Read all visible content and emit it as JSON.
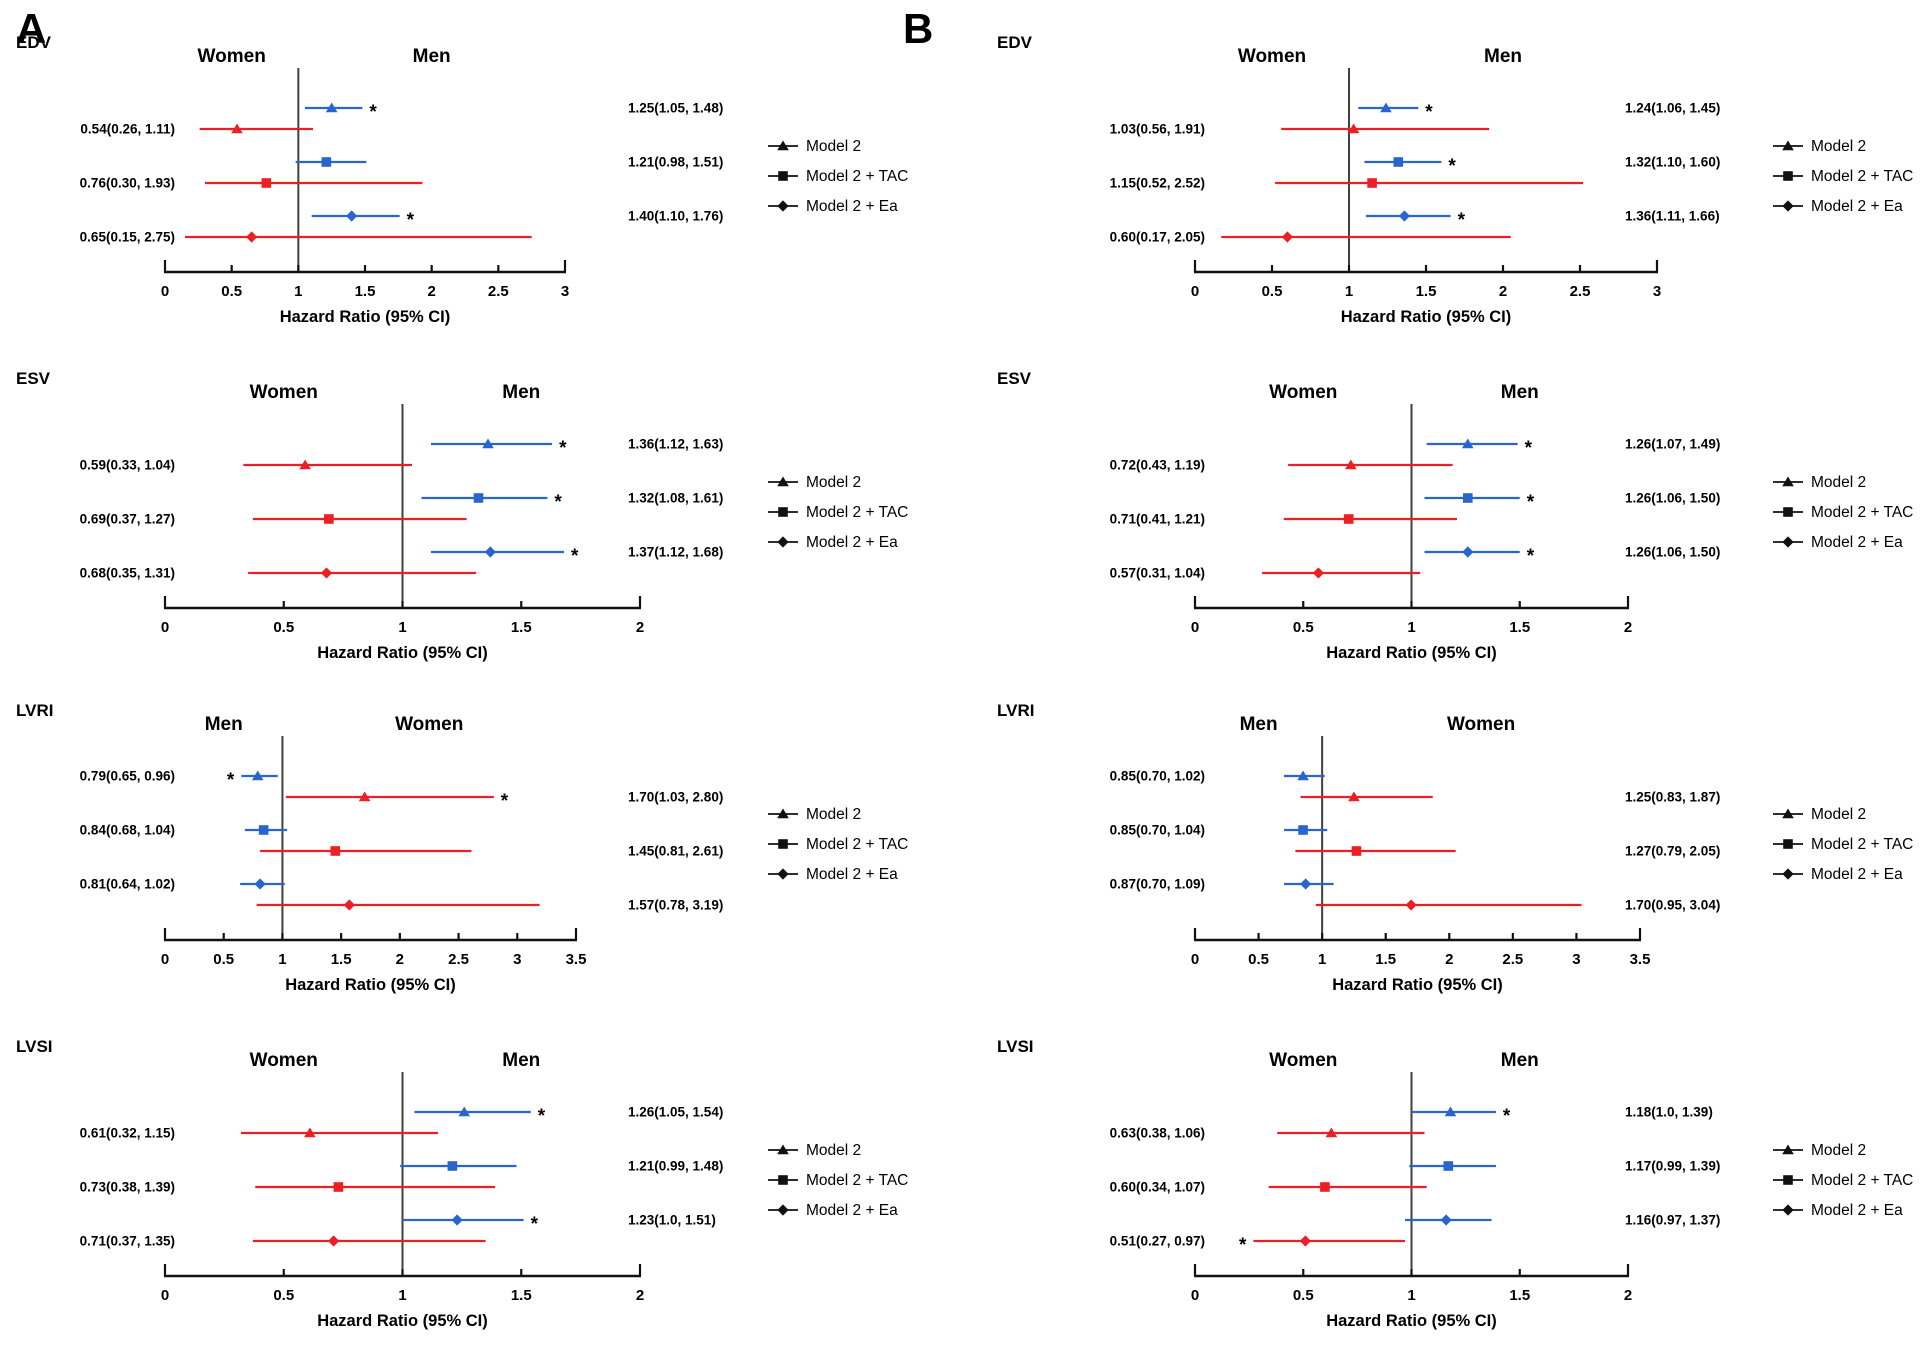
{
  "figure": {
    "panel_labels": [
      "A",
      "B"
    ],
    "axis_label": "Hazard Ratio (95% CI)",
    "legend": [
      {
        "label": "Model 2",
        "marker": "triangle"
      },
      {
        "label": "Model 2 + TAC",
        "marker": "square"
      },
      {
        "label": "Model 2 + Ea",
        "marker": "diamond"
      }
    ],
    "colors": {
      "men_series": "#2a65cc",
      "women_series": "#ec2024",
      "reference_line": "#404040",
      "axis": "#111111",
      "text": "#000000"
    }
  },
  "chart_data": [
    {
      "type": "forest",
      "panel": "A",
      "row_label": "EDV",
      "left_header": "Women",
      "right_header": "Men",
      "left_group": "women",
      "right_group": "men",
      "xlabel": "Hazard Ratio (95% CI)",
      "xlim": [
        0,
        3
      ],
      "ticks": [
        0,
        0.5,
        1,
        1.5,
        2,
        2.5,
        3
      ],
      "refline": 1,
      "models": [
        {
          "name": "Model 2",
          "marker": "triangle",
          "men": {
            "label": "1.25(1.05, 1.48)",
            "est": 1.25,
            "lo": 1.05,
            "hi": 1.48,
            "sig": true
          },
          "women": {
            "label": "0.54(0.26, 1.11)",
            "est": 0.54,
            "lo": 0.26,
            "hi": 1.11,
            "sig": false
          }
        },
        {
          "name": "Model 2 + TAC",
          "marker": "square",
          "men": {
            "label": "1.21(0.98, 1.51)",
            "est": 1.21,
            "lo": 0.98,
            "hi": 1.51,
            "sig": false
          },
          "women": {
            "label": "0.76(0.30, 1.93)",
            "est": 0.76,
            "lo": 0.3,
            "hi": 1.93,
            "sig": false
          }
        },
        {
          "name": "Model 2 + Ea",
          "marker": "diamond",
          "men": {
            "label": "1.40(1.10, 1.76)",
            "est": 1.4,
            "lo": 1.1,
            "hi": 1.76,
            "sig": true
          },
          "women": {
            "label": "0.65(0.15, 2.75)",
            "est": 0.65,
            "lo": 0.15,
            "hi": 2.75,
            "sig": false
          }
        }
      ]
    },
    {
      "type": "forest",
      "panel": "A",
      "row_label": "ESV",
      "left_header": "Women",
      "right_header": "Men",
      "left_group": "women",
      "right_group": "men",
      "xlabel": "Hazard Ratio (95% CI)",
      "xlim": [
        0,
        2
      ],
      "ticks": [
        0,
        0.5,
        1,
        1.5,
        2
      ],
      "refline": 1,
      "models": [
        {
          "name": "Model 2",
          "marker": "triangle",
          "men": {
            "label": "1.36(1.12, 1.63)",
            "est": 1.36,
            "lo": 1.12,
            "hi": 1.63,
            "sig": true
          },
          "women": {
            "label": "0.59(0.33, 1.04)",
            "est": 0.59,
            "lo": 0.33,
            "hi": 1.04,
            "sig": false
          }
        },
        {
          "name": "Model 2 + TAC",
          "marker": "square",
          "men": {
            "label": "1.32(1.08, 1.61)",
            "est": 1.32,
            "lo": 1.08,
            "hi": 1.61,
            "sig": true
          },
          "women": {
            "label": "0.69(0.37, 1.27)",
            "est": 0.69,
            "lo": 0.37,
            "hi": 1.27,
            "sig": false
          }
        },
        {
          "name": "Model 2 + Ea",
          "marker": "diamond",
          "men": {
            "label": "1.37(1.12, 1.68)",
            "est": 1.37,
            "lo": 1.12,
            "hi": 1.68,
            "sig": true
          },
          "women": {
            "label": "0.68(0.35, 1.31)",
            "est": 0.68,
            "lo": 0.35,
            "hi": 1.31,
            "sig": false
          }
        }
      ]
    },
    {
      "type": "forest",
      "panel": "A",
      "row_label": "LVRI",
      "left_header": "Men",
      "right_header": "Women",
      "left_group": "men",
      "right_group": "women",
      "xlabel": "Hazard Ratio (95% CI)",
      "xlim": [
        0,
        3.5
      ],
      "ticks": [
        0,
        0.5,
        1,
        1.5,
        2,
        2.5,
        3,
        3.5
      ],
      "refline": 1,
      "models": [
        {
          "name": "Model 2",
          "marker": "triangle",
          "men": {
            "label": "0.79(0.65, 0.96)",
            "est": 0.79,
            "lo": 0.65,
            "hi": 0.96,
            "sig": true
          },
          "women": {
            "label": "1.70(1.03, 2.80)",
            "est": 1.7,
            "lo": 1.03,
            "hi": 2.8,
            "sig": true
          }
        },
        {
          "name": "Model 2 + TAC",
          "marker": "square",
          "men": {
            "label": "0.84(0.68, 1.04)",
            "est": 0.84,
            "lo": 0.68,
            "hi": 1.04,
            "sig": false
          },
          "women": {
            "label": "1.45(0.81, 2.61)",
            "est": 1.45,
            "lo": 0.81,
            "hi": 2.61,
            "sig": false
          }
        },
        {
          "name": "Model 2 + Ea",
          "marker": "diamond",
          "men": {
            "label": "0.81(0.64, 1.02)",
            "est": 0.81,
            "lo": 0.64,
            "hi": 1.02,
            "sig": false
          },
          "women": {
            "label": "1.57(0.78, 3.19)",
            "est": 1.57,
            "lo": 0.78,
            "hi": 3.19,
            "sig": false
          }
        }
      ]
    },
    {
      "type": "forest",
      "panel": "A",
      "row_label": "LVSI",
      "left_header": "Women",
      "right_header": "Men",
      "left_group": "women",
      "right_group": "men",
      "xlabel": "Hazard Ratio (95% CI)",
      "xlim": [
        0,
        2
      ],
      "ticks": [
        0,
        0.5,
        1,
        1.5,
        2
      ],
      "refline": 1,
      "models": [
        {
          "name": "Model 2",
          "marker": "triangle",
          "men": {
            "label": "1.26(1.05, 1.54)",
            "est": 1.26,
            "lo": 1.05,
            "hi": 1.54,
            "sig": true
          },
          "women": {
            "label": "0.61(0.32, 1.15)",
            "est": 0.61,
            "lo": 0.32,
            "hi": 1.15,
            "sig": false
          }
        },
        {
          "name": "Model 2 + TAC",
          "marker": "square",
          "men": {
            "label": "1.21(0.99, 1.48)",
            "est": 1.21,
            "lo": 0.99,
            "hi": 1.48,
            "sig": false
          },
          "women": {
            "label": "0.73(0.38, 1.39)",
            "est": 0.73,
            "lo": 0.38,
            "hi": 1.39,
            "sig": false
          }
        },
        {
          "name": "Model 2 + Ea",
          "marker": "diamond",
          "men": {
            "label": "1.23(1.0, 1.51)",
            "est": 1.23,
            "lo": 1.0,
            "hi": 1.51,
            "sig": true
          },
          "women": {
            "label": "0.71(0.37, 1.35)",
            "est": 0.71,
            "lo": 0.37,
            "hi": 1.35,
            "sig": false
          }
        }
      ]
    },
    {
      "type": "forest",
      "panel": "B",
      "row_label": "EDV",
      "left_header": "Women",
      "right_header": "Men",
      "left_group": "women",
      "right_group": "men",
      "xlabel": "Hazard Ratio (95% CI)",
      "xlim": [
        0,
        3
      ],
      "ticks": [
        0,
        0.5,
        1,
        1.5,
        2,
        2.5,
        3
      ],
      "refline": 1,
      "models": [
        {
          "name": "Model 2",
          "marker": "triangle",
          "men": {
            "label": "1.24(1.06, 1.45)",
            "est": 1.24,
            "lo": 1.06,
            "hi": 1.45,
            "sig": true
          },
          "women": {
            "label": "1.03(0.56, 1.91)",
            "est": 1.03,
            "lo": 0.56,
            "hi": 1.91,
            "sig": false
          }
        },
        {
          "name": "Model 2 + TAC",
          "marker": "square",
          "men": {
            "label": "1.32(1.10, 1.60)",
            "est": 1.32,
            "lo": 1.1,
            "hi": 1.6,
            "sig": true
          },
          "women": {
            "label": "1.15(0.52, 2.52)",
            "est": 1.15,
            "lo": 0.52,
            "hi": 2.52,
            "sig": false
          }
        },
        {
          "name": "Model 2 + Ea",
          "marker": "diamond",
          "men": {
            "label": "1.36(1.11, 1.66)",
            "est": 1.36,
            "lo": 1.11,
            "hi": 1.66,
            "sig": true
          },
          "women": {
            "label": "0.60(0.17, 2.05)",
            "est": 0.6,
            "lo": 0.17,
            "hi": 2.05,
            "sig": false
          }
        }
      ]
    },
    {
      "type": "forest",
      "panel": "B",
      "row_label": "ESV",
      "left_header": "Women",
      "right_header": "Men",
      "left_group": "women",
      "right_group": "men",
      "xlabel": "Hazard Ratio (95% CI)",
      "xlim": [
        0,
        2
      ],
      "ticks": [
        0,
        0.5,
        1,
        1.5,
        2
      ],
      "refline": 1,
      "models": [
        {
          "name": "Model 2",
          "marker": "triangle",
          "men": {
            "label": "1.26(1.07, 1.49)",
            "est": 1.26,
            "lo": 1.07,
            "hi": 1.49,
            "sig": true
          },
          "women": {
            "label": "0.72(0.43, 1.19)",
            "est": 0.72,
            "lo": 0.43,
            "hi": 1.19,
            "sig": false
          }
        },
        {
          "name": "Model 2 + TAC",
          "marker": "square",
          "men": {
            "label": "1.26(1.06, 1.50)",
            "est": 1.26,
            "lo": 1.06,
            "hi": 1.5,
            "sig": true
          },
          "women": {
            "label": "0.71(0.41, 1.21)",
            "est": 0.71,
            "lo": 0.41,
            "hi": 1.21,
            "sig": false
          }
        },
        {
          "name": "Model 2 + Ea",
          "marker": "diamond",
          "men": {
            "label": "1.26(1.06, 1.50)",
            "est": 1.26,
            "lo": 1.06,
            "hi": 1.5,
            "sig": true
          },
          "women": {
            "label": "0.57(0.31, 1.04)",
            "est": 0.57,
            "lo": 0.31,
            "hi": 1.04,
            "sig": false
          }
        }
      ]
    },
    {
      "type": "forest",
      "panel": "B",
      "row_label": "LVRI",
      "left_header": "Men",
      "right_header": "Women",
      "left_group": "men",
      "right_group": "women",
      "xlabel": "Hazard Ratio (95% CI)",
      "xlim": [
        0,
        3.5
      ],
      "ticks": [
        0,
        0.5,
        1,
        1.5,
        2,
        2.5,
        3,
        3.5
      ],
      "refline": 1,
      "models": [
        {
          "name": "Model 2",
          "marker": "triangle",
          "men": {
            "label": "0.85(0.70, 1.02)",
            "est": 0.85,
            "lo": 0.7,
            "hi": 1.02,
            "sig": false
          },
          "women": {
            "label": "1.25(0.83, 1.87)",
            "est": 1.25,
            "lo": 0.83,
            "hi": 1.87,
            "sig": false
          }
        },
        {
          "name": "Model 2 + TAC",
          "marker": "square",
          "men": {
            "label": "0.85(0.70, 1.04)",
            "est": 0.85,
            "lo": 0.7,
            "hi": 1.04,
            "sig": false
          },
          "women": {
            "label": "1.27(0.79, 2.05)",
            "est": 1.27,
            "lo": 0.79,
            "hi": 2.05,
            "sig": false
          }
        },
        {
          "name": "Model 2 + Ea",
          "marker": "diamond",
          "men": {
            "label": "0.87(0.70, 1.09)",
            "est": 0.87,
            "lo": 0.7,
            "hi": 1.09,
            "sig": false
          },
          "women": {
            "label": "1.70(0.95, 3.04)",
            "est": 1.7,
            "lo": 0.95,
            "hi": 3.04,
            "sig": false
          }
        }
      ]
    },
    {
      "type": "forest",
      "panel": "B",
      "row_label": "LVSI",
      "left_header": "Women",
      "right_header": "Men",
      "left_group": "women",
      "right_group": "men",
      "xlabel": "Hazard Ratio (95% CI)",
      "xlim": [
        0,
        2
      ],
      "ticks": [
        0,
        0.5,
        1,
        1.5,
        2
      ],
      "refline": 1,
      "models": [
        {
          "name": "Model 2",
          "marker": "triangle",
          "men": {
            "label": "1.18(1.0, 1.39)",
            "est": 1.18,
            "lo": 1.0,
            "hi": 1.39,
            "sig": true
          },
          "women": {
            "label": "0.63(0.38, 1.06)",
            "est": 0.63,
            "lo": 0.38,
            "hi": 1.06,
            "sig": false
          }
        },
        {
          "name": "Model 2 + TAC",
          "marker": "square",
          "men": {
            "label": "1.17(0.99, 1.39)",
            "est": 1.17,
            "lo": 0.99,
            "hi": 1.39,
            "sig": false
          },
          "women": {
            "label": "0.60(0.34, 1.07)",
            "est": 0.6,
            "lo": 0.34,
            "hi": 1.07,
            "sig": false
          }
        },
        {
          "name": "Model 2 + Ea",
          "marker": "diamond",
          "men": {
            "label": "1.16(0.97, 1.37)",
            "est": 1.16,
            "lo": 0.97,
            "hi": 1.37,
            "sig": false
          },
          "women": {
            "label": "0.51(0.27, 0.97)",
            "est": 0.51,
            "lo": 0.27,
            "hi": 0.97,
            "sig": true
          }
        }
      ]
    }
  ]
}
